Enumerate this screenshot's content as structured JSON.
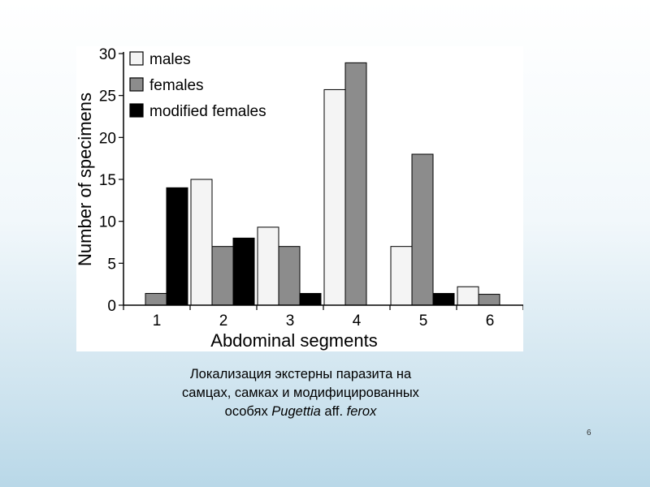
{
  "chart_data": {
    "type": "bar",
    "categories": [
      "1",
      "2",
      "3",
      "4",
      "5",
      "6"
    ],
    "series": [
      {
        "name": "males",
        "color": "#f4f4f4",
        "values": [
          0,
          15,
          9.3,
          25.7,
          7,
          2.2
        ]
      },
      {
        "name": "females",
        "color": "#8c8c8c",
        "values": [
          1.4,
          7,
          7,
          28.9,
          18,
          1.3
        ]
      },
      {
        "name": "modified females",
        "color": "#000000",
        "values": [
          14,
          8,
          1.4,
          0,
          1.4,
          0
        ]
      }
    ],
    "xlabel": "Abdominal segments",
    "ylabel": "Number of specimens",
    "ylim": [
      0,
      30
    ],
    "yticks": [
      0,
      5,
      10,
      15,
      20,
      25,
      30
    ],
    "legend_position": "top-left",
    "grid": false
  },
  "caption": {
    "line1": "Локализация экстерны паразита на",
    "line2": "самцах, самках и модифицированных",
    "line3_prefix": "особях ",
    "genus": "Pugettia",
    "aff": " aff. ",
    "species": "ferox"
  },
  "page_number": "6"
}
